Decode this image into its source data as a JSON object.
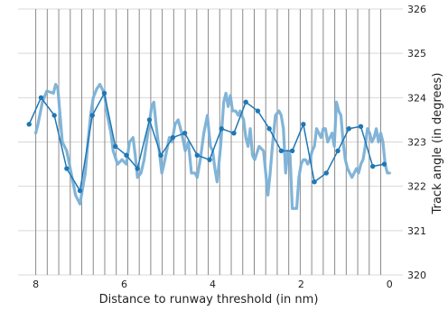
{
  "chart_data": {
    "type": "line",
    "title": "",
    "xlabel": "Distance to runway threshold (in nm)",
    "ylabel": "Track angle (in degrees)",
    "xlim": [
      8.4,
      -0.3
    ],
    "ylim": [
      320,
      326
    ],
    "x_axis_reversed": true,
    "y_axis_side": "right",
    "x_ticks": [
      8,
      6,
      4,
      2,
      0
    ],
    "x_tick_labels": [
      "8",
      "6",
      "4",
      "2",
      "0"
    ],
    "y_ticks": [
      320,
      321,
      322,
      323,
      324,
      325,
      326
    ],
    "y_tick_labels": [
      "320",
      "321",
      "322",
      "323",
      "324",
      "325",
      "326"
    ],
    "horizontal_grid": true,
    "vertical_reference_lines_x": [
      8.0,
      7.74,
      7.48,
      7.22,
      6.96,
      6.7,
      6.44,
      6.18,
      5.92,
      5.66,
      5.4,
      5.14,
      4.88,
      4.62,
      4.36,
      4.1,
      3.84,
      3.58,
      3.32,
      3.06,
      2.8,
      2.54,
      2.28,
      2.02,
      1.76,
      1.5,
      1.24,
      0.98,
      0.72,
      0.46,
      0.2
    ],
    "colors": {
      "raw_line": "#7ab0d6",
      "sampled_line": "#1f77b4",
      "grid": "#d8d8d8",
      "reference_lines": "#8a8a8a"
    },
    "series": [
      {
        "style": "thick_raw",
        "x": [
          8.0,
          7.95,
          7.85,
          7.75,
          7.6,
          7.55,
          7.5,
          7.45,
          7.4,
          7.3,
          7.2,
          7.1,
          7.0,
          6.95,
          6.88,
          6.82,
          6.76,
          6.7,
          6.62,
          6.55,
          6.45,
          6.38,
          6.3,
          6.25,
          6.15,
          6.05,
          5.95,
          5.88,
          5.8,
          5.75,
          5.7,
          5.62,
          5.55,
          5.45,
          5.38,
          5.33,
          5.28,
          5.22,
          5.15,
          5.1,
          5.04,
          4.98,
          4.92,
          4.85,
          4.78,
          4.7,
          4.62,
          4.55,
          4.48,
          4.4,
          4.35,
          4.28,
          4.2,
          4.12,
          4.05,
          4.0,
          3.95,
          3.9,
          3.82,
          3.75,
          3.7,
          3.65,
          3.6,
          3.55,
          3.48,
          3.42,
          3.38,
          3.3,
          3.25,
          3.2,
          3.15,
          3.1,
          3.05,
          2.95,
          2.85,
          2.75,
          2.7,
          2.65,
          2.58,
          2.5,
          2.45,
          2.4,
          2.35,
          2.3,
          2.25,
          2.2,
          2.15,
          2.1,
          2.05,
          2.0,
          1.95,
          1.9,
          1.85,
          1.8,
          1.75,
          1.7,
          1.65,
          1.6,
          1.55,
          1.5,
          1.45,
          1.4,
          1.35,
          1.3,
          1.25,
          1.2,
          1.15,
          1.1,
          1.05,
          1.0,
          0.95,
          0.9,
          0.85,
          0.8,
          0.75,
          0.7,
          0.65,
          0.6,
          0.55,
          0.5,
          0.45,
          0.4,
          0.35,
          0.3,
          0.25,
          0.2,
          0.15,
          0.1,
          0.05,
          0.0
        ],
        "y": [
          323.2,
          323.4,
          323.9,
          324.15,
          324.1,
          324.3,
          324.2,
          323.6,
          323.0,
          322.8,
          322.3,
          321.8,
          321.6,
          321.9,
          322.3,
          323.0,
          323.6,
          324.0,
          324.2,
          324.3,
          324.1,
          323.6,
          323.2,
          322.8,
          322.5,
          322.6,
          322.5,
          323.0,
          323.1,
          322.7,
          322.2,
          322.3,
          322.6,
          323.3,
          323.8,
          323.9,
          323.4,
          322.9,
          322.3,
          322.5,
          322.8,
          323.1,
          323.0,
          323.4,
          323.5,
          323.2,
          322.8,
          323.0,
          322.3,
          322.3,
          322.2,
          322.6,
          323.2,
          323.6,
          322.9,
          322.8,
          322.4,
          322.1,
          322.9,
          323.9,
          324.1,
          323.8,
          324.05,
          323.7,
          323.7,
          323.6,
          323.7,
          323.5,
          323.1,
          322.9,
          323.3,
          322.7,
          322.6,
          322.9,
          322.8,
          321.8,
          322.3,
          322.9,
          323.6,
          323.7,
          323.6,
          323.3,
          322.3,
          322.8,
          322.7,
          321.5,
          321.5,
          321.5,
          322.2,
          322.5,
          322.6,
          322.6,
          322.5,
          322.6,
          322.8,
          322.9,
          323.3,
          323.2,
          323.1,
          323.3,
          323.3,
          323.0,
          323.1,
          323.2,
          322.9,
          323.9,
          323.7,
          323.6,
          323.0,
          322.6,
          322.4,
          322.3,
          322.2,
          322.3,
          322.4,
          322.3,
          322.5,
          322.6,
          322.9,
          323.3,
          323.2,
          323.0,
          323.1,
          323.3,
          323.0,
          323.2,
          323.0,
          322.5,
          322.3,
          322.3
        ]
      },
      {
        "style": "markers_line",
        "x": [
          8.15,
          7.88,
          7.58,
          7.3,
          7.0,
          6.72,
          6.45,
          6.2,
          5.95,
          5.7,
          5.43,
          5.17,
          4.9,
          4.63,
          4.35,
          4.07,
          3.8,
          3.52,
          3.25,
          2.98,
          2.72,
          2.45,
          2.2,
          1.95,
          1.7,
          1.43,
          1.17,
          0.92,
          0.65,
          0.38,
          0.12
        ],
        "y": [
          323.4,
          324.0,
          323.6,
          322.4,
          321.9,
          323.6,
          324.1,
          322.9,
          322.7,
          322.4,
          323.5,
          322.7,
          323.1,
          323.2,
          322.7,
          322.6,
          323.3,
          323.2,
          323.9,
          323.7,
          323.3,
          322.8,
          322.8,
          323.4,
          322.1,
          322.3,
          322.8,
          323.3,
          323.35,
          322.45,
          322.5
        ]
      }
    ]
  }
}
